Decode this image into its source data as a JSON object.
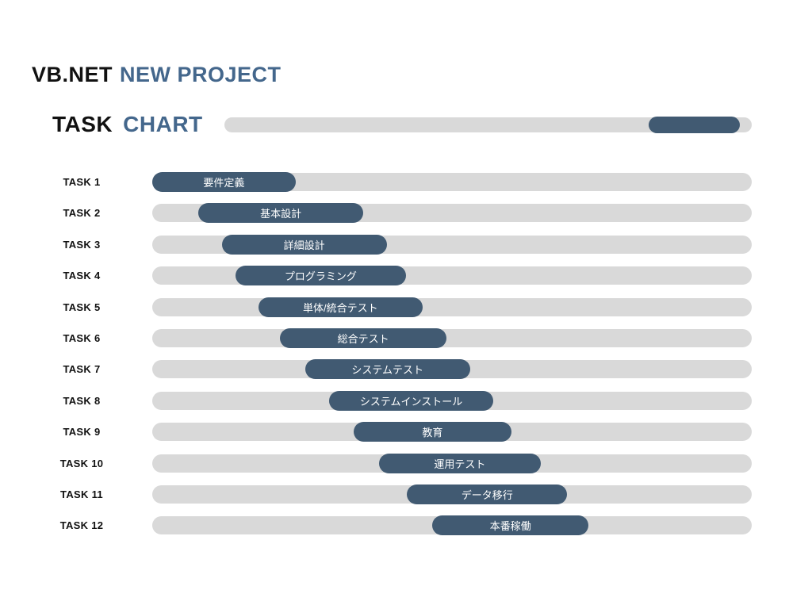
{
  "title": {
    "prefix": "VB.NET",
    "suffix": "NEW PROJECT"
  },
  "subheader": {
    "prefix": "TASK",
    "suffix": "CHART"
  },
  "header_progress": {
    "start_pct": 80.5,
    "end_pct": 97.7
  },
  "colors": {
    "background": "#ffffff",
    "track": "#d9d9d9",
    "bar": "#415a72",
    "accent_text": "#44678c",
    "heading_text": "#111111",
    "bar_label_text": "#ffffff"
  },
  "chart_data": {
    "type": "bar",
    "orientation": "horizontal",
    "title": "TASK CHART",
    "x_unit": "percent_of_timeline",
    "xlim": [
      0,
      100
    ],
    "grid": false,
    "legend": false,
    "categories": [
      "TASK 1",
      "TASK 2",
      "TASK 3",
      "TASK 4",
      "TASK 5",
      "TASK 6",
      "TASK 7",
      "TASK 8",
      "TASK 9",
      "TASK 10",
      "TASK 11",
      "TASK 12"
    ],
    "bar_labels": [
      "要件定義",
      "基本設計",
      "詳細設計",
      "プログラミング",
      "単体/統合テスト",
      "総合テスト",
      "システムテスト",
      "システムインストール",
      "教育",
      "運用テスト",
      "データ移行",
      "本番稼働"
    ],
    "series": [
      {
        "name": "task-duration",
        "start_pct": [
          0.0,
          7.7,
          11.6,
          13.9,
          17.7,
          21.3,
          25.5,
          29.5,
          33.6,
          37.8,
          42.5,
          46.7
        ],
        "end_pct": [
          23.9,
          35.2,
          39.1,
          42.3,
          45.1,
          49.1,
          53.0,
          56.9,
          59.9,
          64.8,
          69.2,
          72.8
        ]
      }
    ]
  }
}
